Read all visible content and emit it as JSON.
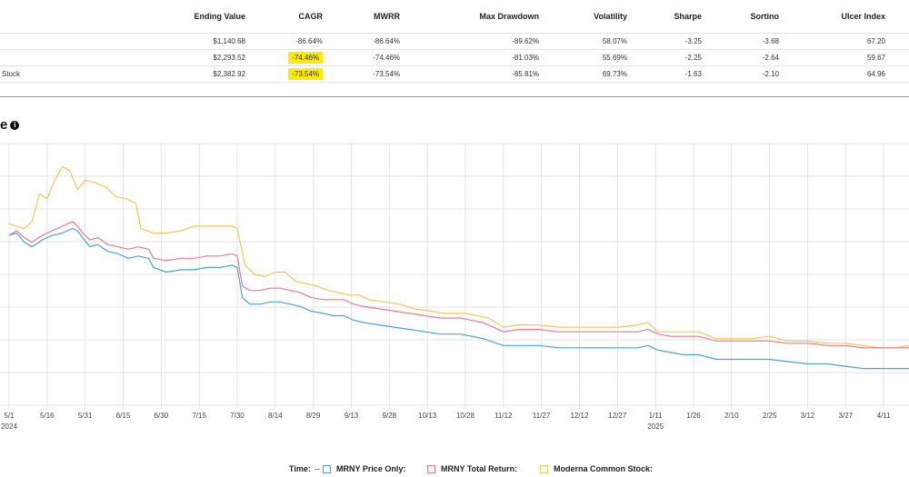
{
  "table": {
    "headers": [
      "",
      "Ending Value",
      "CAGR",
      "MWRR",
      "Max Drawdown",
      "Volatility",
      "Sharpe",
      "Sortino",
      "Ulcer Index"
    ],
    "rows": [
      [
        "",
        "$1,140.68",
        "-86.64%",
        "-86.64%",
        "-89.62%",
        "58.07%",
        "-3.25",
        "-3.68",
        "67.20"
      ],
      [
        "",
        "$2,293.52",
        "-74.46%",
        "-74.46%",
        "-81.03%",
        "55.69%",
        "-2.25",
        "-2.64",
        "59.67"
      ],
      [
        "Stock",
        "$2,382.92",
        "-73.54%",
        "-73.54%",
        "-85.81%",
        "69.73%",
        "-1.63",
        "-2.10",
        "64.96"
      ]
    ],
    "highlight_color": "#ffeb00"
  },
  "chart_heading": "e",
  "legend": {
    "time_label": "Time:",
    "time_value": "--",
    "items": [
      "MRNY Price Only:",
      "MRNY Total Return:",
      "Moderna Common Stock:"
    ]
  },
  "chart_data": {
    "type": "line",
    "x_tick_labels": [
      "5/1",
      "5/16",
      "5/31",
      "6/15",
      "6/30",
      "7/15",
      "7/30",
      "8/14",
      "8/29",
      "9/13",
      "9/28",
      "10/13",
      "10/28",
      "11/12",
      "11/27",
      "12/12",
      "12/27",
      "1/11",
      "1/26",
      "2/10",
      "2/25",
      "3/12",
      "3/27",
      "4/11"
    ],
    "year_labels": [
      {
        "tick": "5/1",
        "year": "2024"
      },
      {
        "tick": "1/11",
        "year": "2025"
      }
    ],
    "x_start": "2024-05-01",
    "x_end": "2025-04-21",
    "grid": true,
    "colors": {
      "price": "#4aa3e0",
      "total": "#f07a8c",
      "stock": "#f5c55a",
      "grid": "#e3e3e3"
    },
    "series": [
      {
        "name": "MRNY Price Only:",
        "key": "price",
        "points": [
          [
            "2024-05-01",
            100
          ],
          [
            "2024-05-04",
            101
          ],
          [
            "2024-05-07",
            97
          ],
          [
            "2024-05-10",
            95
          ],
          [
            "2024-05-14",
            98
          ],
          [
            "2024-05-18",
            100
          ],
          [
            "2024-05-22",
            101
          ],
          [
            "2024-05-26",
            103
          ],
          [
            "2024-05-28",
            102
          ],
          [
            "2024-05-30",
            99
          ],
          [
            "2024-06-02",
            95
          ],
          [
            "2024-06-05",
            96
          ],
          [
            "2024-06-09",
            93
          ],
          [
            "2024-06-13",
            92
          ],
          [
            "2024-06-17",
            90
          ],
          [
            "2024-06-21",
            91
          ],
          [
            "2024-06-25",
            90
          ],
          [
            "2024-06-27",
            86
          ],
          [
            "2024-07-02",
            84
          ],
          [
            "2024-07-08",
            85
          ],
          [
            "2024-07-13",
            85
          ],
          [
            "2024-07-18",
            86
          ],
          [
            "2024-07-23",
            86
          ],
          [
            "2024-07-28",
            87
          ],
          [
            "2024-07-30",
            86
          ],
          [
            "2024-08-01",
            73
          ],
          [
            "2024-08-04",
            70
          ],
          [
            "2024-08-08",
            70
          ],
          [
            "2024-08-12",
            71
          ],
          [
            "2024-08-16",
            71
          ],
          [
            "2024-08-20",
            70
          ],
          [
            "2024-08-24",
            69
          ],
          [
            "2024-08-28",
            67
          ],
          [
            "2024-09-02",
            66
          ],
          [
            "2024-09-06",
            65
          ],
          [
            "2024-09-10",
            65
          ],
          [
            "2024-09-14",
            63
          ],
          [
            "2024-09-18",
            62
          ],
          [
            "2024-09-24",
            61
          ],
          [
            "2024-09-30",
            60
          ],
          [
            "2024-10-06",
            59
          ],
          [
            "2024-10-12",
            58
          ],
          [
            "2024-10-18",
            57
          ],
          [
            "2024-10-26",
            57
          ],
          [
            "2024-11-04",
            55
          ],
          [
            "2024-11-12",
            52
          ],
          [
            "2024-11-18",
            52
          ],
          [
            "2024-11-26",
            52
          ],
          [
            "2024-12-04",
            51
          ],
          [
            "2024-12-12",
            51
          ],
          [
            "2024-12-20",
            51
          ],
          [
            "2024-12-28",
            51
          ],
          [
            "2025-01-04",
            51
          ],
          [
            "2025-01-08",
            52
          ],
          [
            "2025-01-12",
            50
          ],
          [
            "2025-01-17",
            49
          ],
          [
            "2025-01-22",
            48
          ],
          [
            "2025-01-28",
            48
          ],
          [
            "2025-02-04",
            46
          ],
          [
            "2025-02-10",
            46
          ],
          [
            "2025-02-18",
            46
          ],
          [
            "2025-02-25",
            46
          ],
          [
            "2025-03-04",
            45
          ],
          [
            "2025-03-12",
            44
          ],
          [
            "2025-03-20",
            44
          ],
          [
            "2025-03-27",
            43
          ],
          [
            "2025-04-03",
            42
          ],
          [
            "2025-04-10",
            42
          ],
          [
            "2025-04-16",
            42
          ],
          [
            "2025-04-21",
            42
          ]
        ]
      },
      {
        "name": "MRNY Total Return:",
        "key": "total",
        "points": [
          [
            "2024-05-01",
            100
          ],
          [
            "2024-05-04",
            102
          ],
          [
            "2024-05-07",
            99
          ],
          [
            "2024-05-10",
            97
          ],
          [
            "2024-05-14",
            100
          ],
          [
            "2024-05-18",
            102
          ],
          [
            "2024-05-22",
            104
          ],
          [
            "2024-05-26",
            106
          ],
          [
            "2024-05-28",
            104
          ],
          [
            "2024-05-30",
            101
          ],
          [
            "2024-06-02",
            98
          ],
          [
            "2024-06-05",
            99
          ],
          [
            "2024-06-09",
            96
          ],
          [
            "2024-06-13",
            95
          ],
          [
            "2024-06-17",
            94
          ],
          [
            "2024-06-21",
            95
          ],
          [
            "2024-06-25",
            94
          ],
          [
            "2024-06-27",
            90
          ],
          [
            "2024-07-02",
            89
          ],
          [
            "2024-07-08",
            90
          ],
          [
            "2024-07-13",
            90
          ],
          [
            "2024-07-18",
            91
          ],
          [
            "2024-07-23",
            91
          ],
          [
            "2024-07-28",
            92
          ],
          [
            "2024-07-30",
            91
          ],
          [
            "2024-08-01",
            78
          ],
          [
            "2024-08-04",
            76
          ],
          [
            "2024-08-08",
            76
          ],
          [
            "2024-08-12",
            77
          ],
          [
            "2024-08-16",
            77
          ],
          [
            "2024-08-20",
            76
          ],
          [
            "2024-08-24",
            75
          ],
          [
            "2024-08-28",
            73
          ],
          [
            "2024-09-02",
            72
          ],
          [
            "2024-09-06",
            72
          ],
          [
            "2024-09-10",
            72
          ],
          [
            "2024-09-14",
            70
          ],
          [
            "2024-09-18",
            69
          ],
          [
            "2024-09-24",
            68
          ],
          [
            "2024-09-30",
            67
          ],
          [
            "2024-10-06",
            66
          ],
          [
            "2024-10-12",
            65
          ],
          [
            "2024-10-18",
            64
          ],
          [
            "2024-10-26",
            64
          ],
          [
            "2024-11-04",
            62
          ],
          [
            "2024-11-12",
            58
          ],
          [
            "2024-11-18",
            59
          ],
          [
            "2024-11-26",
            59
          ],
          [
            "2024-12-04",
            58
          ],
          [
            "2024-12-12",
            58
          ],
          [
            "2024-12-20",
            58
          ],
          [
            "2024-12-28",
            58
          ],
          [
            "2025-01-04",
            58
          ],
          [
            "2025-01-08",
            59
          ],
          [
            "2025-01-12",
            57
          ],
          [
            "2025-01-17",
            56
          ],
          [
            "2025-01-22",
            56
          ],
          [
            "2025-01-28",
            56
          ],
          [
            "2025-02-04",
            54
          ],
          [
            "2025-02-10",
            54
          ],
          [
            "2025-02-18",
            54
          ],
          [
            "2025-02-25",
            54
          ],
          [
            "2025-03-04",
            53
          ],
          [
            "2025-03-12",
            53
          ],
          [
            "2025-03-20",
            52
          ],
          [
            "2025-03-27",
            52
          ],
          [
            "2025-04-03",
            51
          ],
          [
            "2025-04-10",
            51
          ],
          [
            "2025-04-16",
            51
          ],
          [
            "2025-04-21",
            51
          ]
        ]
      },
      {
        "name": "Moderna Common Stock:",
        "key": "stock",
        "points": [
          [
            "2024-05-01",
            105
          ],
          [
            "2024-05-04",
            104
          ],
          [
            "2024-05-07",
            103
          ],
          [
            "2024-05-10",
            106
          ],
          [
            "2024-05-13",
            118
          ],
          [
            "2024-05-16",
            116
          ],
          [
            "2024-05-19",
            124
          ],
          [
            "2024-05-22",
            130
          ],
          [
            "2024-05-25",
            128
          ],
          [
            "2024-05-28",
            120
          ],
          [
            "2024-05-31",
            124
          ],
          [
            "2024-06-04",
            123
          ],
          [
            "2024-06-08",
            121
          ],
          [
            "2024-06-12",
            117
          ],
          [
            "2024-06-16",
            116
          ],
          [
            "2024-06-20",
            114
          ],
          [
            "2024-06-22",
            103
          ],
          [
            "2024-06-27",
            101
          ],
          [
            "2024-07-02",
            101
          ],
          [
            "2024-07-08",
            102
          ],
          [
            "2024-07-13",
            104
          ],
          [
            "2024-07-18",
            104
          ],
          [
            "2024-07-23",
            104
          ],
          [
            "2024-07-28",
            104
          ],
          [
            "2024-07-30",
            103
          ],
          [
            "2024-08-02",
            87
          ],
          [
            "2024-08-06",
            83
          ],
          [
            "2024-08-10",
            82
          ],
          [
            "2024-08-14",
            84
          ],
          [
            "2024-08-18",
            84
          ],
          [
            "2024-08-22",
            80
          ],
          [
            "2024-08-26",
            79
          ],
          [
            "2024-08-30",
            78
          ],
          [
            "2024-09-04",
            76
          ],
          [
            "2024-09-08",
            75
          ],
          [
            "2024-09-12",
            74
          ],
          [
            "2024-09-16",
            74
          ],
          [
            "2024-09-20",
            72
          ],
          [
            "2024-09-26",
            71
          ],
          [
            "2024-10-02",
            70
          ],
          [
            "2024-10-08",
            68
          ],
          [
            "2024-10-14",
            67
          ],
          [
            "2024-10-20",
            66
          ],
          [
            "2024-10-28",
            66
          ],
          [
            "2024-11-06",
            64
          ],
          [
            "2024-11-12",
            60
          ],
          [
            "2024-11-18",
            61
          ],
          [
            "2024-11-26",
            61
          ],
          [
            "2024-12-04",
            60
          ],
          [
            "2024-12-12",
            60
          ],
          [
            "2024-12-20",
            60
          ],
          [
            "2024-12-28",
            60
          ],
          [
            "2025-01-04",
            61
          ],
          [
            "2025-01-08",
            62
          ],
          [
            "2025-01-12",
            58
          ],
          [
            "2025-01-17",
            58
          ],
          [
            "2025-01-22",
            58
          ],
          [
            "2025-01-28",
            58
          ],
          [
            "2025-02-04",
            55
          ],
          [
            "2025-02-10",
            55
          ],
          [
            "2025-02-18",
            55
          ],
          [
            "2025-02-25",
            56
          ],
          [
            "2025-03-04",
            54
          ],
          [
            "2025-03-12",
            54
          ],
          [
            "2025-03-20",
            53
          ],
          [
            "2025-03-27",
            53
          ],
          [
            "2025-04-03",
            52
          ],
          [
            "2025-04-10",
            51
          ],
          [
            "2025-04-16",
            51
          ],
          [
            "2025-04-21",
            52
          ]
        ]
      }
    ]
  }
}
